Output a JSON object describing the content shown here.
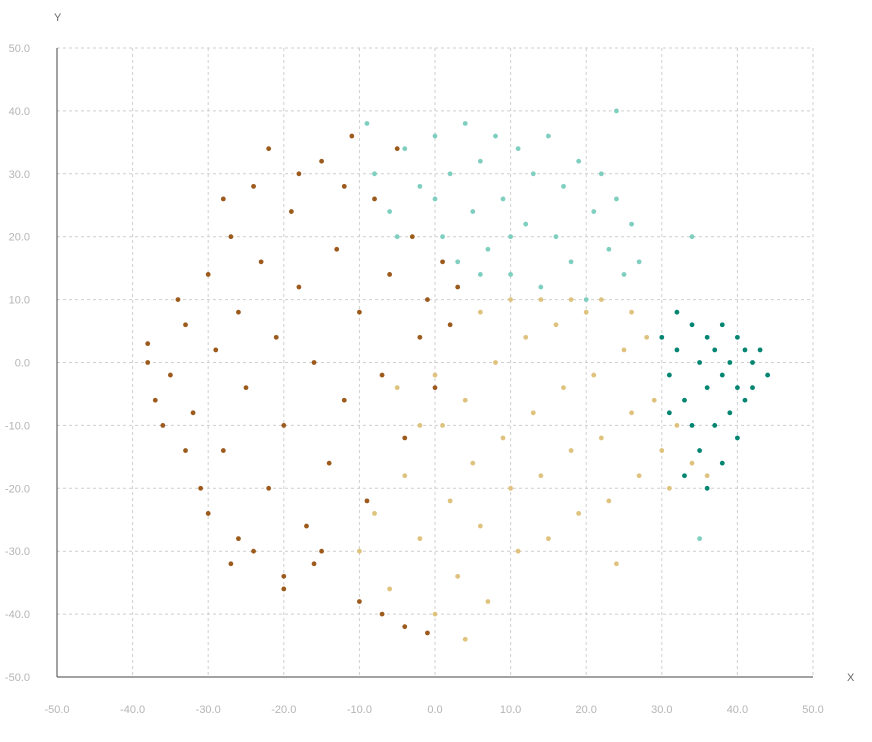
{
  "chart_data": {
    "type": "scatter",
    "title": "",
    "xlabel": "X",
    "ylabel": "Y",
    "xlim": [
      -50,
      50
    ],
    "ylim": [
      -50,
      50
    ],
    "xticks": [
      "-50.0",
      "-40.0",
      "-30.0",
      "-20.0",
      "-10.0",
      "0.0",
      "10.0",
      "20.0",
      "30.0",
      "40.0",
      "50.0"
    ],
    "yticks": [
      "50.0",
      "40.0",
      "30.0",
      "20.0",
      "10.0",
      "0.0",
      "-10.0",
      "-20.0",
      "-30.0",
      "-40.0",
      "-50.0"
    ],
    "grid": true,
    "legend": "none",
    "series": [
      {
        "color": "#9c5a1c",
        "points": [
          [
            -38,
            3
          ],
          [
            -35,
            -2
          ],
          [
            -33,
            6
          ],
          [
            -32,
            -8
          ],
          [
            -30,
            14
          ],
          [
            -29,
            2
          ],
          [
            -28,
            -14
          ],
          [
            -27,
            20
          ],
          [
            -26,
            8
          ],
          [
            -25,
            -4
          ],
          [
            -24,
            28
          ],
          [
            -23,
            16
          ],
          [
            -22,
            -20
          ],
          [
            -21,
            4
          ],
          [
            -20,
            -10
          ],
          [
            -19,
            24
          ],
          [
            -18,
            12
          ],
          [
            -17,
            -26
          ],
          [
            -16,
            0
          ],
          [
            -15,
            32
          ],
          [
            -14,
            -16
          ],
          [
            -13,
            18
          ],
          [
            -12,
            -6
          ],
          [
            -11,
            36
          ],
          [
            -10,
            8
          ],
          [
            -9,
            -22
          ],
          [
            -8,
            26
          ],
          [
            -7,
            -2
          ],
          [
            -6,
            14
          ],
          [
            -5,
            34
          ],
          [
            -4,
            -12
          ],
          [
            -3,
            20
          ],
          [
            -2,
            4
          ],
          [
            -1,
            10
          ],
          [
            0,
            -4
          ],
          [
            1,
            16
          ],
          [
            2,
            6
          ],
          [
            3,
            12
          ],
          [
            -36,
            -10
          ],
          [
            -34,
            10
          ],
          [
            -31,
            -20
          ],
          [
            -28,
            26
          ],
          [
            -26,
            -28
          ],
          [
            -24,
            -30
          ],
          [
            -22,
            34
          ],
          [
            -20,
            -34
          ],
          [
            -18,
            30
          ],
          [
            -15,
            -30
          ],
          [
            -12,
            28
          ],
          [
            -10,
            -38
          ],
          [
            -7,
            -40
          ],
          [
            -4,
            -42
          ],
          [
            -1,
            -43
          ],
          [
            -30,
            -24
          ],
          [
            -27,
            -32
          ],
          [
            -20,
            -36
          ],
          [
            -16,
            -32
          ],
          [
            -33,
            -14
          ],
          [
            -37,
            -6
          ],
          [
            -38,
            0
          ]
        ]
      },
      {
        "color": "#7ecfc0",
        "points": [
          [
            -9,
            38
          ],
          [
            -8,
            30
          ],
          [
            -6,
            24
          ],
          [
            -4,
            34
          ],
          [
            -2,
            28
          ],
          [
            0,
            36
          ],
          [
            1,
            20
          ],
          [
            2,
            30
          ],
          [
            3,
            16
          ],
          [
            4,
            38
          ],
          [
            5,
            24
          ],
          [
            6,
            32
          ],
          [
            7,
            18
          ],
          [
            8,
            36
          ],
          [
            9,
            26
          ],
          [
            10,
            14
          ],
          [
            11,
            34
          ],
          [
            12,
            22
          ],
          [
            13,
            30
          ],
          [
            14,
            12
          ],
          [
            15,
            36
          ],
          [
            16,
            20
          ],
          [
            17,
            28
          ],
          [
            18,
            16
          ],
          [
            19,
            32
          ],
          [
            20,
            10
          ],
          [
            21,
            24
          ],
          [
            22,
            30
          ],
          [
            23,
            18
          ],
          [
            24,
            26
          ],
          [
            25,
            14
          ],
          [
            26,
            22
          ],
          [
            27,
            16
          ],
          [
            24,
            40
          ],
          [
            34,
            20
          ],
          [
            35,
            -28
          ],
          [
            -5,
            20
          ],
          [
            0,
            26
          ],
          [
            6,
            14
          ],
          [
            10,
            20
          ]
        ]
      },
      {
        "color": "#dfc27d",
        "points": [
          [
            -10,
            -30
          ],
          [
            -8,
            -24
          ],
          [
            -6,
            -36
          ],
          [
            -4,
            -18
          ],
          [
            -2,
            -28
          ],
          [
            0,
            -40
          ],
          [
            1,
            -10
          ],
          [
            2,
            -22
          ],
          [
            3,
            -34
          ],
          [
            4,
            -6
          ],
          [
            5,
            -16
          ],
          [
            6,
            -26
          ],
          [
            7,
            -38
          ],
          [
            8,
            0
          ],
          [
            9,
            -12
          ],
          [
            10,
            -20
          ],
          [
            11,
            -30
          ],
          [
            12,
            4
          ],
          [
            13,
            -8
          ],
          [
            14,
            -18
          ],
          [
            15,
            -28
          ],
          [
            16,
            6
          ],
          [
            17,
            -4
          ],
          [
            18,
            -14
          ],
          [
            19,
            -24
          ],
          [
            20,
            8
          ],
          [
            21,
            -2
          ],
          [
            22,
            -12
          ],
          [
            23,
            -22
          ],
          [
            24,
            -32
          ],
          [
            25,
            2
          ],
          [
            26,
            -8
          ],
          [
            27,
            -18
          ],
          [
            28,
            4
          ],
          [
            29,
            -6
          ],
          [
            30,
            -14
          ],
          [
            31,
            -20
          ],
          [
            32,
            -10
          ],
          [
            34,
            -16
          ],
          [
            36,
            -18
          ],
          [
            6,
            8
          ],
          [
            10,
            10
          ],
          [
            14,
            10
          ],
          [
            18,
            10
          ],
          [
            22,
            10
          ],
          [
            26,
            8
          ],
          [
            -2,
            -10
          ],
          [
            -5,
            -4
          ],
          [
            0,
            -2
          ],
          [
            4,
            -44
          ]
        ]
      },
      {
        "color": "#018571",
        "points": [
          [
            30,
            4
          ],
          [
            31,
            -2
          ],
          [
            32,
            2
          ],
          [
            33,
            -6
          ],
          [
            34,
            6
          ],
          [
            34,
            -10
          ],
          [
            35,
            0
          ],
          [
            35,
            -14
          ],
          [
            36,
            4
          ],
          [
            36,
            -4
          ],
          [
            37,
            -10
          ],
          [
            37,
            2
          ],
          [
            38,
            6
          ],
          [
            38,
            -2
          ],
          [
            38,
            -16
          ],
          [
            39,
            0
          ],
          [
            39,
            -8
          ],
          [
            40,
            4
          ],
          [
            40,
            -4
          ],
          [
            41,
            2
          ],
          [
            41,
            -6
          ],
          [
            42,
            0
          ],
          [
            43,
            2
          ],
          [
            44,
            -2
          ],
          [
            33,
            -18
          ],
          [
            36,
            -20
          ],
          [
            31,
            -8
          ],
          [
            40,
            -12
          ],
          [
            42,
            -4
          ],
          [
            32,
            8
          ]
        ]
      }
    ]
  }
}
